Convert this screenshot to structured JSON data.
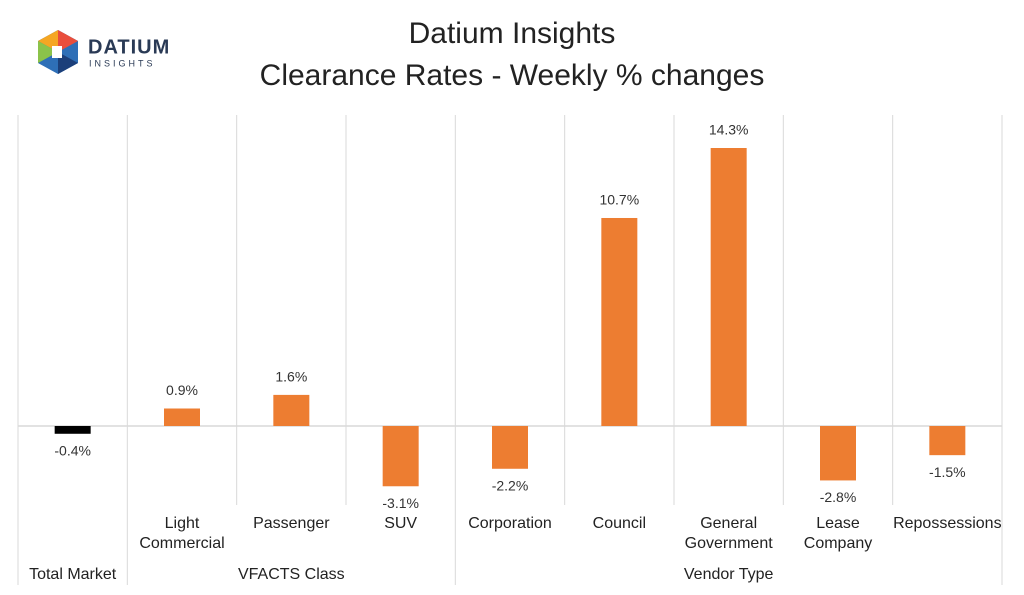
{
  "logo": {
    "name": "DATIUM",
    "tagline": "INSIGHTS"
  },
  "chart_data": {
    "type": "bar",
    "title": "Datium Insights",
    "subtitle": "Clearance Rates - Weekly % changes",
    "categories": [
      "Total Market",
      "Light\nCommercial",
      "Passenger",
      "SUV",
      "Corporation",
      "Council",
      "General\nGovernment",
      "Lease\nCompany",
      "Repossessions"
    ],
    "groups": [
      "Total Market",
      "VFACTS Class",
      "VFACTS Class",
      "VFACTS Class",
      "Vendor Type",
      "Vendor Type",
      "Vendor Type",
      "Vendor Type",
      "Vendor Type"
    ],
    "values": [
      -0.4,
      0.9,
      1.6,
      -3.1,
      -2.2,
      10.7,
      14.3,
      -2.8,
      -1.5
    ],
    "value_labels": [
      "-0.4%",
      "0.9%",
      "1.6%",
      "-3.1%",
      "-2.2%",
      "10.7%",
      "14.3%",
      "-2.8%",
      "-1.5%"
    ],
    "colors": [
      "#000000",
      "#ed7d31",
      "#ed7d31",
      "#ed7d31",
      "#ed7d31",
      "#ed7d31",
      "#ed7d31",
      "#ed7d31",
      "#ed7d31"
    ]
  }
}
